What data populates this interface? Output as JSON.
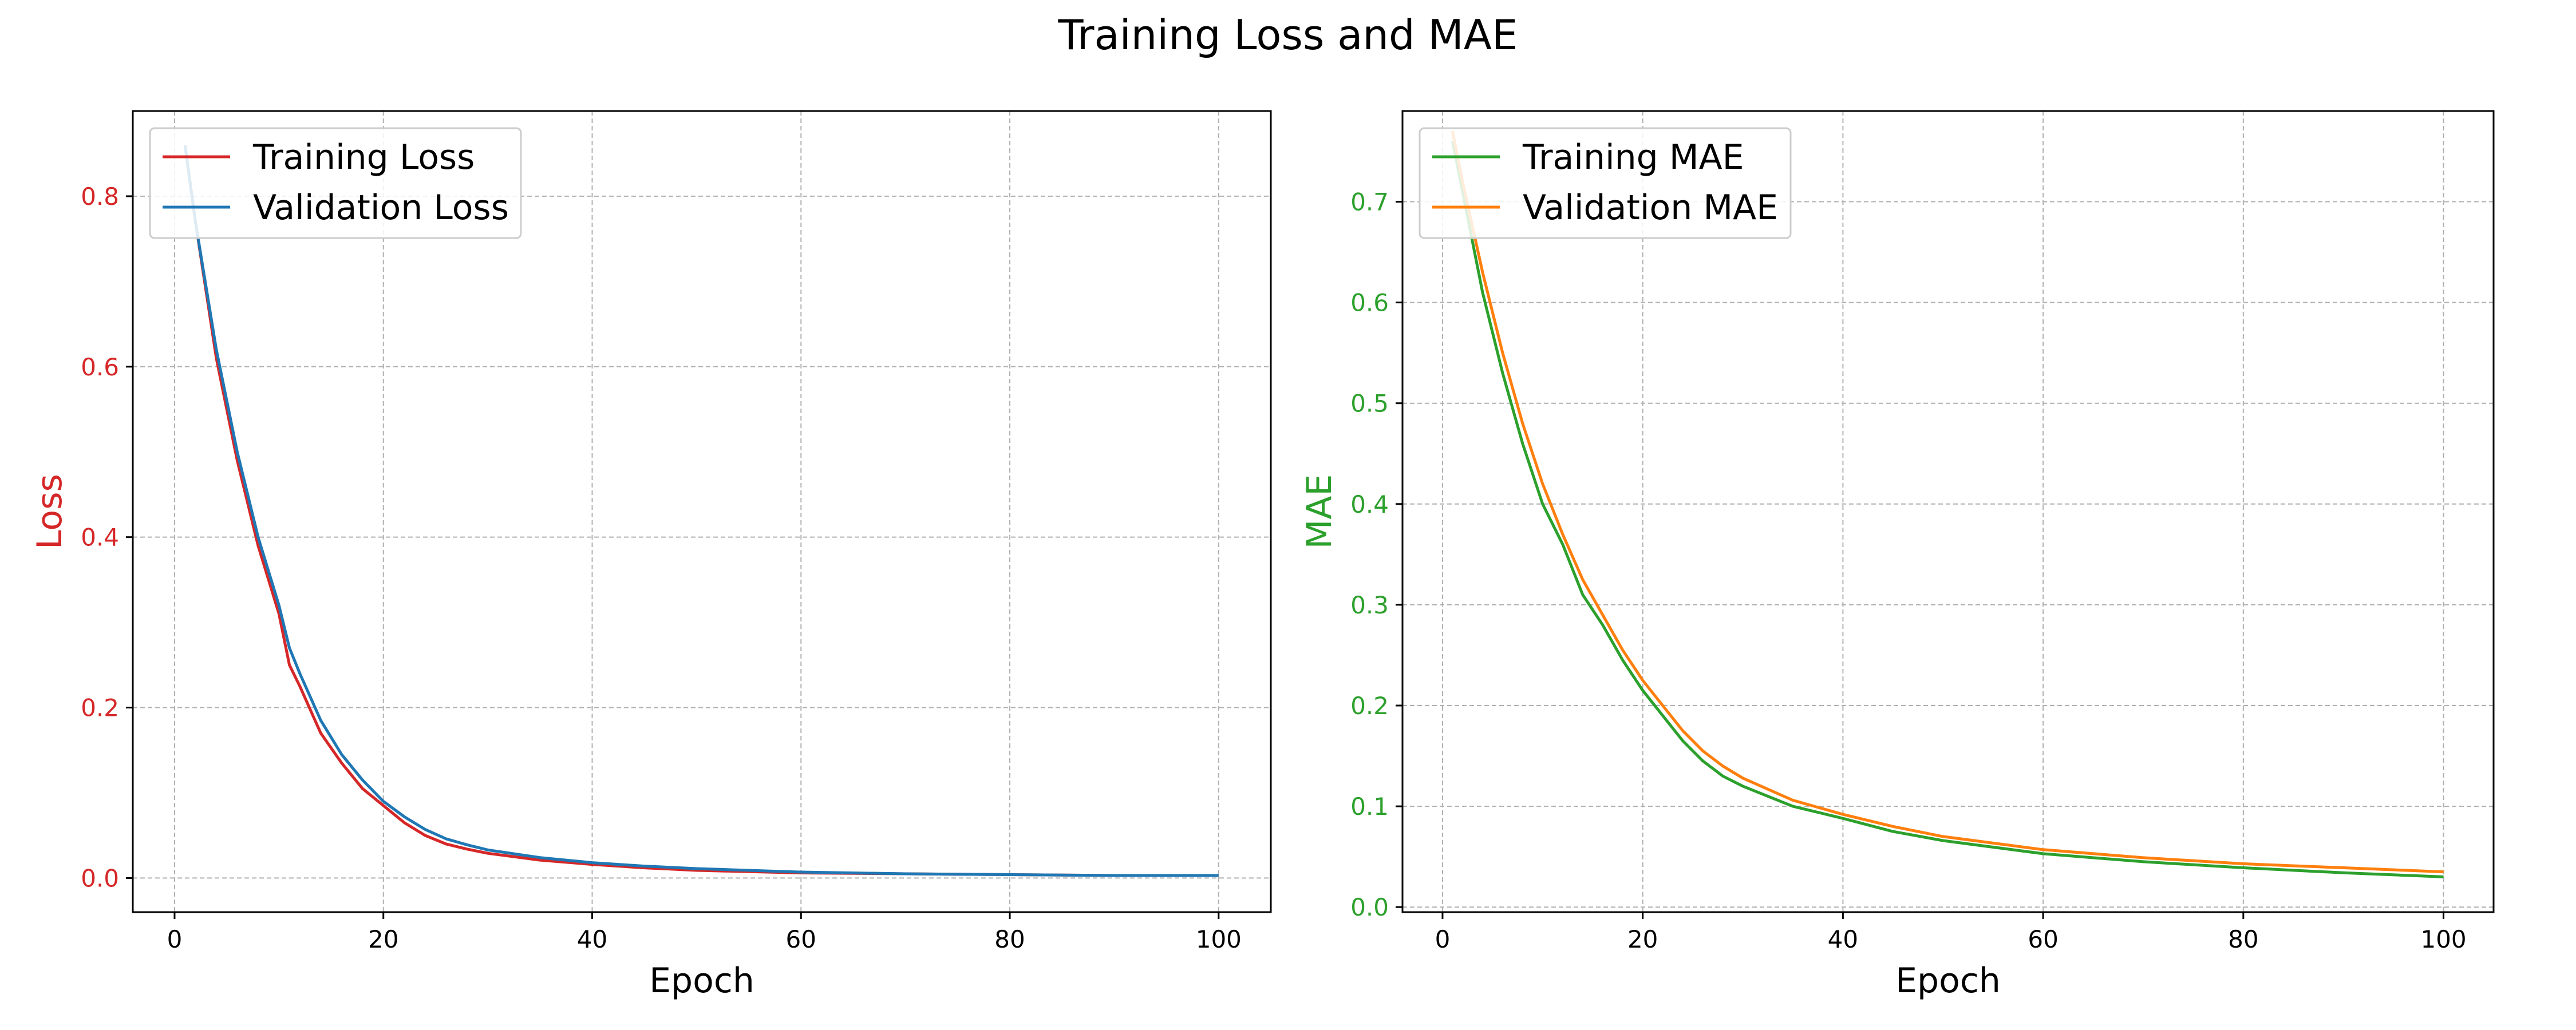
{
  "figure": {
    "title": "Training Loss and MAE"
  },
  "chart_data": [
    {
      "type": "line",
      "xlabel": "Epoch",
      "ylabel": "Loss",
      "ylabel_color": "#d62728",
      "ytick_color": "#d62728",
      "xlim": [
        -4,
        105
      ],
      "ylim": [
        -0.04,
        0.9
      ],
      "xticks": [
        0,
        20,
        40,
        60,
        80,
        100
      ],
      "yticks": [
        0.0,
        0.2,
        0.4,
        0.6,
        0.8
      ],
      "ytick_labels": [
        "0.0",
        "0.2",
        "0.4",
        "0.6",
        "0.8"
      ],
      "grid": true,
      "legend_position": "upper-left",
      "x": [
        1,
        2,
        4,
        6,
        8,
        10,
        11,
        12,
        14,
        16,
        18,
        20,
        22,
        24,
        26,
        28,
        30,
        35,
        40,
        45,
        50,
        60,
        70,
        80,
        90,
        100
      ],
      "series": [
        {
          "name": "Training Loss",
          "color": "#d62728",
          "values": [
            0.86,
            0.77,
            0.61,
            0.49,
            0.39,
            0.31,
            0.25,
            0.225,
            0.17,
            0.135,
            0.105,
            0.085,
            0.065,
            0.05,
            0.04,
            0.034,
            0.029,
            0.021,
            0.016,
            0.012,
            0.009,
            0.006,
            0.005,
            0.004,
            0.003,
            0.003
          ]
        },
        {
          "name": "Validation Loss",
          "color": "#1f77b4",
          "values": [
            0.86,
            0.77,
            0.62,
            0.5,
            0.4,
            0.32,
            0.27,
            0.24,
            0.185,
            0.145,
            0.115,
            0.09,
            0.072,
            0.057,
            0.046,
            0.039,
            0.033,
            0.024,
            0.018,
            0.014,
            0.011,
            0.007,
            0.005,
            0.004,
            0.003,
            0.003
          ]
        }
      ]
    },
    {
      "type": "line",
      "xlabel": "Epoch",
      "ylabel": "MAE",
      "ylabel_color": "#2ca02c",
      "ytick_color": "#2ca02c",
      "xlim": [
        -4,
        105
      ],
      "ylim": [
        -0.005,
        0.79
      ],
      "xticks": [
        0,
        20,
        40,
        60,
        80,
        100
      ],
      "yticks": [
        0.0,
        0.1,
        0.2,
        0.3,
        0.4,
        0.5,
        0.6,
        0.7
      ],
      "ytick_labels": [
        "0.0",
        "0.1",
        "0.2",
        "0.3",
        "0.4",
        "0.5",
        "0.6",
        "0.7"
      ],
      "grid": true,
      "legend_position": "upper-left",
      "x": [
        1,
        2,
        4,
        6,
        8,
        10,
        11,
        12,
        14,
        16,
        18,
        20,
        22,
        24,
        26,
        28,
        30,
        35,
        40,
        45,
        50,
        60,
        70,
        80,
        90,
        100
      ],
      "series": [
        {
          "name": "Training MAE",
          "color": "#2ca02c",
          "values": [
            0.76,
            0.71,
            0.61,
            0.53,
            0.46,
            0.4,
            0.38,
            0.36,
            0.31,
            0.28,
            0.245,
            0.215,
            0.19,
            0.165,
            0.145,
            0.13,
            0.12,
            0.1,
            0.088,
            0.075,
            0.066,
            0.053,
            0.045,
            0.039,
            0.034,
            0.03
          ]
        },
        {
          "name": "Validation MAE",
          "color": "#ff7f0e",
          "values": [
            0.77,
            0.72,
            0.63,
            0.55,
            0.48,
            0.42,
            0.395,
            0.37,
            0.325,
            0.29,
            0.255,
            0.225,
            0.2,
            0.175,
            0.155,
            0.14,
            0.128,
            0.106,
            0.092,
            0.08,
            0.07,
            0.057,
            0.049,
            0.043,
            0.039,
            0.035
          ]
        }
      ]
    }
  ]
}
